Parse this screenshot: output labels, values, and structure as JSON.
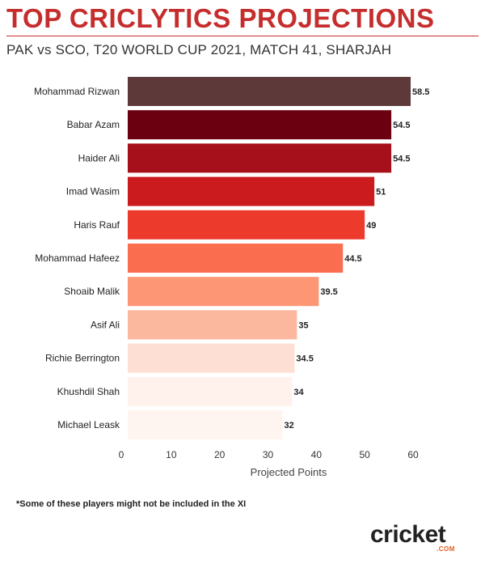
{
  "header": {
    "title": "TOP CRICLYTICS PROJECTIONS",
    "subtitle": "PAK vs SCO, T20 WORLD CUP 2021, MATCH 41, SHARJAH"
  },
  "chart_data": {
    "type": "bar",
    "orientation": "horizontal",
    "categories": [
      "Mohammad Rizwan",
      "Babar Azam",
      "Haider Ali",
      "Imad Wasim",
      "Haris Rauf",
      "Mohammad Hafeez",
      "Shoaib Malik",
      "Asif Ali",
      "Richie Berrington",
      "Khushdil Shah",
      "Michael Leask"
    ],
    "values": [
      58.5,
      54.5,
      54.5,
      51,
      49,
      44.5,
      39.5,
      35,
      34.5,
      34,
      32
    ],
    "value_labels": [
      "58.5",
      "54.5",
      "54.5",
      "51",
      "49",
      "44.5",
      "39.5",
      "35",
      "34.5",
      "34",
      "32"
    ],
    "bar_colors": [
      "#5e393a",
      "#6b0010",
      "#a6101a",
      "#cb1b1f",
      "#ec3a2c",
      "#fb6d4f",
      "#fc9675",
      "#fcb89e",
      "#fde0d3",
      "#fff2ed",
      "#fff5f0"
    ],
    "xlabel": "Projected Points",
    "ylabel": "",
    "xlim": [
      0,
      60
    ],
    "xticks": [
      0,
      10,
      20,
      30,
      40,
      50,
      60
    ],
    "grid": false,
    "legend": "none"
  },
  "footnote": "*Some of these players might not be included in the XI",
  "logo": {
    "text": "cricket",
    "sub": ".COM"
  }
}
